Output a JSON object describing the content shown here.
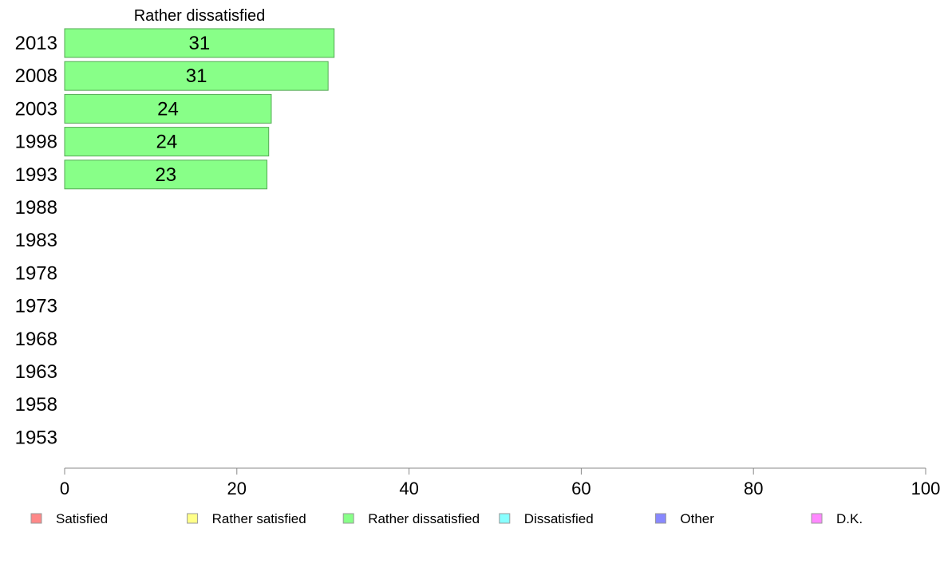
{
  "chart_data": {
    "type": "bar",
    "orientation": "horizontal",
    "title": "Rather dissatisfied",
    "categories": [
      "2013",
      "2008",
      "2003",
      "1998",
      "1993",
      "1988",
      "1983",
      "1978",
      "1973",
      "1968",
      "1963",
      "1958",
      "1953"
    ],
    "values": [
      31.3,
      30.6,
      24.0,
      23.7,
      23.5,
      null,
      null,
      null,
      null,
      null,
      null,
      null,
      null
    ],
    "labels": [
      "31",
      "31",
      "24",
      "24",
      "23",
      "",
      "",
      "",
      "",
      "",
      "",
      "",
      ""
    ],
    "xlim": [
      0,
      100
    ],
    "xticks": [
      0,
      20,
      40,
      60,
      80,
      100
    ],
    "bar_color": "#88ff88",
    "bar_border": "#55aa55",
    "axis_color": "#888888",
    "legend": {
      "placement": "bottom",
      "items": [
        {
          "label": "Satisfied",
          "color": "#ff8888"
        },
        {
          "label": "Rather satisfied",
          "color": "#ffff88"
        },
        {
          "label": "Rather dissatisfied",
          "color": "#88ff88"
        },
        {
          "label": "Dissatisfied",
          "color": "#88ffff"
        },
        {
          "label": "Other",
          "color": "#8888ff"
        },
        {
          "label": "D.K.",
          "color": "#ff88ff"
        }
      ]
    }
  }
}
